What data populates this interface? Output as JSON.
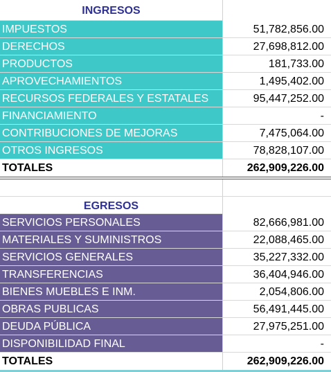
{
  "ingresos": {
    "title": "INGRESOS",
    "rows": [
      [
        "IMPUESTOS",
        "51,782,856.00"
      ],
      [
        "DERECHOS",
        "27,698,812.00"
      ],
      [
        "PRODUCTOS",
        "181,733.00"
      ],
      [
        "APROVECHAMIENTOS",
        "1,495,402.00"
      ],
      [
        "RECURSOS FEDERALES Y ESTATALES",
        "95,447,252.00"
      ],
      [
        "FINANCIAMIENTO",
        "-"
      ],
      [
        "CONTRIBUCIONES DE MEJORAS",
        "7,475,064.00"
      ],
      [
        "OTROS INGRESOS",
        "78,828,107.00"
      ]
    ],
    "total": [
      "TOTALES",
      "262,909,226.00"
    ]
  },
  "egresos": {
    "title": "EGRESOS",
    "rows": [
      [
        "SERVICIOS PERSONALES",
        "82,666,981.00"
      ],
      [
        "MATERIALES Y SUMINISTROS",
        "22,088,465.00"
      ],
      [
        "SERVICIOS GENERALES",
        "35,227,332.00"
      ],
      [
        "TRANSFERENCIAS",
        "36,404,946.00"
      ],
      [
        "BIENES MUEBLES E INM.",
        "2,054,806.00"
      ],
      [
        "OBRAS PUBLICAS",
        "56,491,445.00"
      ],
      [
        "DEUDA PÚBLICA",
        "27,975,251.00"
      ],
      [
        "DISPONIBILIDAD FINAL",
        "-"
      ]
    ],
    "total": [
      "TOTALES",
      "262,909,226.00"
    ]
  }
}
